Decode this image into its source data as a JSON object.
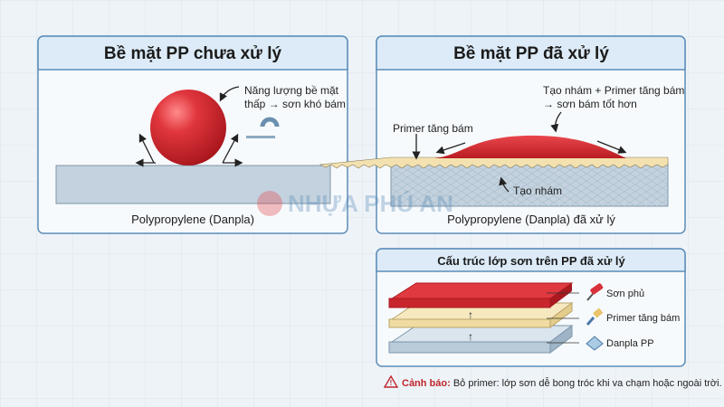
{
  "panel_untreated": {
    "title": "Bề mặt PP chưa xử lý",
    "note_line1": "Năng lượng bề mặt",
    "note_line2": "thấp → sơn khó bám",
    "caption": "Polypropylene (Danpla)"
  },
  "panel_treated": {
    "title": "Bề mặt PP đã xử lý",
    "primer_label": "Primer tăng bám",
    "note_line1": "Tạo nhám + Primer tăng bám",
    "note_line2": "→ sơn bám tốt hơn",
    "roughen_label": "Tạo nhám",
    "caption": "Polypropylene (Danpla) đã xử lý"
  },
  "panel_layers": {
    "title": "Cấu trúc lớp sơn trên PP đã xử lý",
    "layers": [
      {
        "label": "Sơn phủ",
        "icon": "paint-roller-icon",
        "color": "#d9313a"
      },
      {
        "label": "Primer tăng bám",
        "icon": "paint-brush-icon",
        "color": "#f3e2b0"
      },
      {
        "label": "Danpla PP",
        "icon": "sheet-icon",
        "color": "#b9cbd9"
      }
    ]
  },
  "warning": {
    "prefix": "Cảnh báo:",
    "text": "Bỏ primer: lớp sơn dễ bong tróc khi va chạm hoặc ngoài trời."
  },
  "watermark": "NHỰA PHÚ AN",
  "colors": {
    "paint": "#d9313a",
    "primer": "#f3e2b0",
    "substrate": "#c3d2de",
    "frame": "#5c8db8",
    "warning": "#c0262d"
  }
}
